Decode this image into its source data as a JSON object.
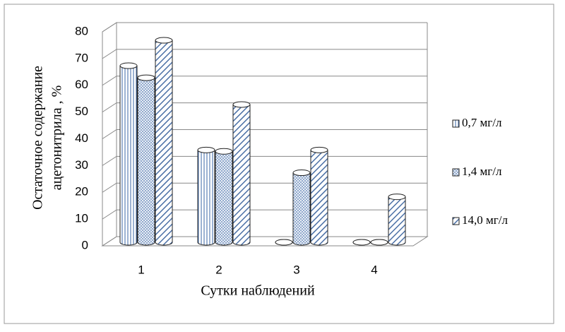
{
  "chart_data": {
    "type": "bar",
    "y_label": [
      "Остаточное содержание",
      "ацетонитрила , %"
    ],
    "x_label": "Сутки наблюдений",
    "categories": [
      "1",
      "2",
      "3",
      "4"
    ],
    "series": [
      {
        "name": "0,7 мг/л",
        "color": "#5a7fb5",
        "values": [
          66,
          34.5,
          0,
          0
        ]
      },
      {
        "name": "1,4 мг/л",
        "color": "#5a7fb5",
        "values": [
          61.5,
          34,
          26,
          0
        ]
      },
      {
        "name": "14,0 мг/л",
        "color": "#4a6fa5",
        "values": [
          75.5,
          51.5,
          34.5,
          17
        ]
      }
    ],
    "ylim": [
      0,
      80
    ],
    "yticks": [
      0,
      10,
      20,
      30,
      40,
      50,
      60,
      70,
      80
    ],
    "grid": true
  }
}
